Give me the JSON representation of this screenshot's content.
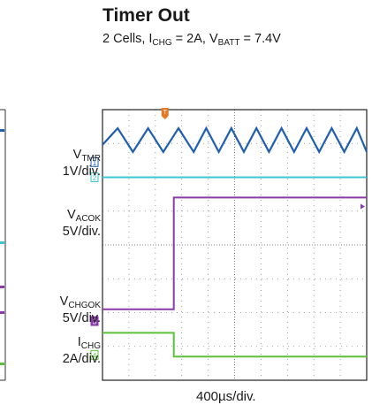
{
  "header": {
    "title": "Timer Out",
    "subtitle_prefix": "2 Cells, I",
    "subtitle_sub1": "CHG",
    "subtitle_mid": " = 2A, V",
    "subtitle_sub2": "BATT",
    "subtitle_suffix": " = 7.4V"
  },
  "channels": [
    {
      "id": "1",
      "name_main": "V",
      "name_sub": "TMR",
      "scale": "1V/div.",
      "color": "#1f5fb0"
    },
    {
      "id": "2",
      "name_main": "V",
      "name_sub": "ACOK",
      "scale": "5V/div.",
      "color": "#3cc6d6"
    },
    {
      "id": "3",
      "name_main": "V",
      "name_sub": "CHGOK",
      "scale": "5V/div.",
      "color": "#8a3aa8"
    },
    {
      "id": "4",
      "name_main": "I",
      "name_sub": "CHG",
      "scale": "2A/div.",
      "color": "#5cc13a"
    }
  ],
  "trigger_marker": "T",
  "trigger_color": "#e87722",
  "timebase": "400µs/div.",
  "chart_data": {
    "type": "line",
    "grid": true,
    "time_per_div_us": 400,
    "x_divisions": 10,
    "y_divisions": 8,
    "series": [
      {
        "name": "VTMR",
        "kind": "triangle",
        "channel": "1",
        "level_div": 7.1,
        "amplitude_div": 0.7,
        "period_div_before": 1.15,
        "period_div_after": 0.95
      },
      {
        "name": "VACOK",
        "kind": "flat",
        "channel": "2",
        "level_div": 6.0
      },
      {
        "name": "VCHGOK",
        "kind": "step",
        "channel": "3",
        "before_div": 2.1,
        "after_div": 5.4,
        "step_at_div": 2.7
      },
      {
        "name": "ICHG",
        "kind": "step",
        "channel": "4",
        "before_div": 1.4,
        "after_div": 0.7,
        "step_at_div": 2.7
      }
    ]
  }
}
